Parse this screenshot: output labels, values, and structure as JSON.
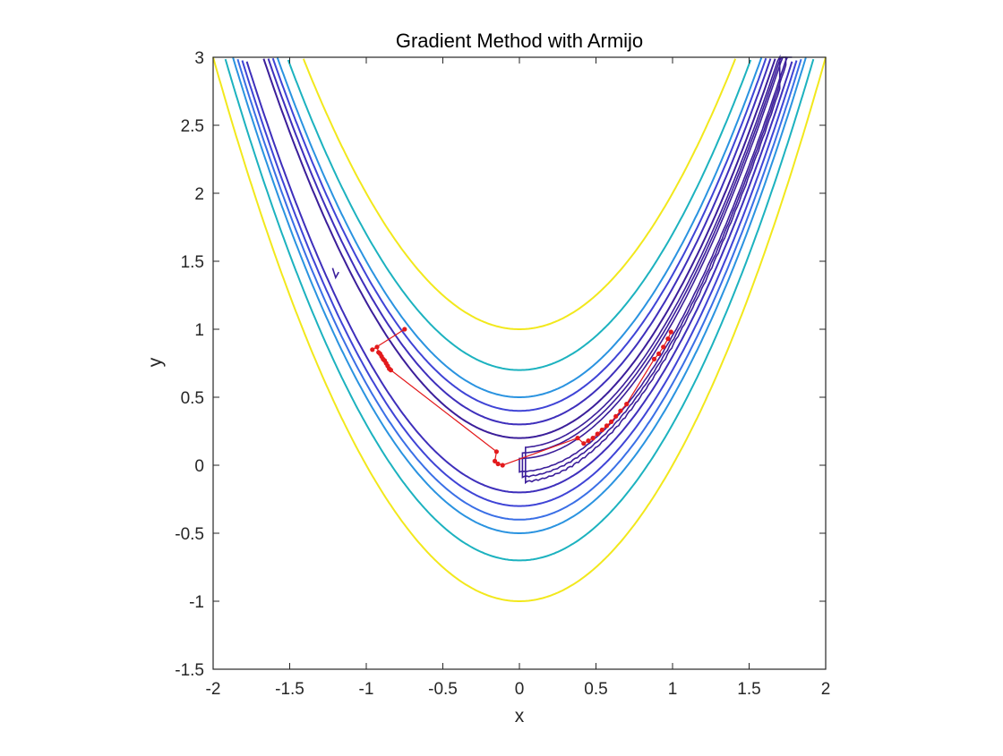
{
  "chart_data": {
    "type": "contour",
    "title": "Gradient Method with Armijo",
    "xlabel": "x",
    "ylabel": "y",
    "xlim": [
      -2,
      2
    ],
    "ylim": [
      -1.5,
      3
    ],
    "xticks": [
      "-2",
      "-1.5",
      "-1",
      "-0.5",
      "0",
      "0.5",
      "1",
      "1.5",
      "2"
    ],
    "yticks": [
      "-1.5",
      "-1",
      "-0.5",
      "0",
      "0.5",
      "1",
      "1.5",
      "2",
      "2.5",
      "3"
    ],
    "grid": false,
    "box": true,
    "colors": {
      "path": "#e31a1c",
      "axis": "#262626",
      "contour_levels": [
        "#3b1e9a",
        "#3b1e9a",
        "#3e2fbb",
        "#3e2fbb",
        "#3f44d6",
        "#3f44d6",
        "#3a6fe6",
        "#2a93e0",
        "#1cb2bf",
        "#f2e81c"
      ]
    },
    "contour_levels": [
      {
        "offset": -1.0,
        "color": "#f2e81c"
      },
      {
        "offset": -0.7,
        "color": "#1cb2bf"
      },
      {
        "offset": -0.5,
        "color": "#2a93e0"
      },
      {
        "offset": -0.4,
        "color": "#3a6fe6"
      },
      {
        "offset": -0.3,
        "color": "#3f44d6"
      },
      {
        "offset": -0.2,
        "color": "#3e2fbb"
      },
      {
        "offset": 0.5,
        "color": "#2a93e0"
      },
      {
        "offset": 0.7,
        "color": "#1cb2bf"
      },
      {
        "offset": 1.0,
        "color": "#f2e81c"
      },
      {
        "offset": 0.3,
        "color": "#3e2fbb"
      },
      {
        "offset": 0.4,
        "color": "#3f44d6"
      },
      {
        "offset": 0.2,
        "color": "#3b1e9a"
      }
    ],
    "path_points": [
      [
        -0.75,
        1.0
      ],
      [
        -0.96,
        0.85
      ],
      [
        -0.93,
        0.87
      ],
      [
        -0.92,
        0.83
      ],
      [
        -0.91,
        0.82
      ],
      [
        -0.9,
        0.8
      ],
      [
        -0.89,
        0.78
      ],
      [
        -0.88,
        0.77
      ],
      [
        -0.87,
        0.75
      ],
      [
        -0.86,
        0.73
      ],
      [
        -0.85,
        0.71
      ],
      [
        -0.84,
        0.7
      ],
      [
        -0.15,
        0.1
      ],
      [
        -0.16,
        0.03
      ],
      [
        -0.14,
        0.01
      ],
      [
        -0.11,
        0.0
      ],
      [
        0.38,
        0.2
      ],
      [
        0.42,
        0.16
      ],
      [
        0.45,
        0.18
      ],
      [
        0.48,
        0.2
      ],
      [
        0.51,
        0.23
      ],
      [
        0.54,
        0.26
      ],
      [
        0.57,
        0.29
      ],
      [
        0.6,
        0.32
      ],
      [
        0.63,
        0.36
      ],
      [
        0.66,
        0.4
      ],
      [
        0.7,
        0.45
      ],
      [
        0.88,
        0.78
      ],
      [
        0.91,
        0.82
      ],
      [
        0.94,
        0.87
      ],
      [
        0.97,
        0.93
      ],
      [
        0.99,
        0.98
      ]
    ]
  }
}
